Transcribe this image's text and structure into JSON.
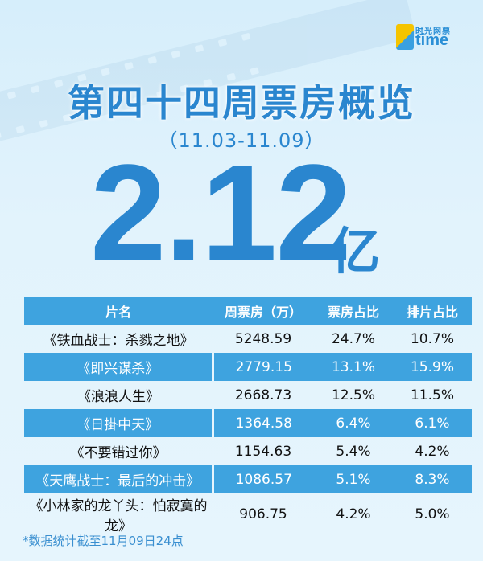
{
  "brand": {
    "logo_cn": "时光网票",
    "logo_en": "time"
  },
  "title": "第四十四周票房概览",
  "date_range": "（11.03-11.09）",
  "total": {
    "value": "2.12",
    "unit": "亿"
  },
  "table": {
    "headers": [
      "片名",
      "周票房（万）",
      "票房占比",
      "排片占比"
    ],
    "rows": [
      {
        "name": "《铁血战士：杀戮之地》",
        "box": "5248.59",
        "share": "24.7%",
        "screen": "10.7%"
      },
      {
        "name": "《即兴谋杀》",
        "box": "2779.15",
        "share": "13.1%",
        "screen": "15.9%"
      },
      {
        "name": "《浪浪人生》",
        "box": "2668.73",
        "share": "12.5%",
        "screen": "11.5%"
      },
      {
        "name": "《日掛中天》",
        "box": "1364.58",
        "share": "6.4%",
        "screen": "6.1%"
      },
      {
        "name": "《不要错过你》",
        "box": "1154.63",
        "share": "5.4%",
        "screen": "4.2%"
      },
      {
        "name": "《天鹰战士：最后的冲击》",
        "box": "1086.57",
        "share": "5.1%",
        "screen": "8.3%"
      },
      {
        "name": "《小林家的龙丫头：怕寂寞的龙》",
        "box": "906.75",
        "share": "4.2%",
        "screen": "5.0%"
      }
    ]
  },
  "footnote": "*数据统计截至11月09日24点",
  "colors": {
    "accent": "#2a86cf",
    "header_bg": "#3ea3df",
    "background": "#e2f3fc"
  }
}
